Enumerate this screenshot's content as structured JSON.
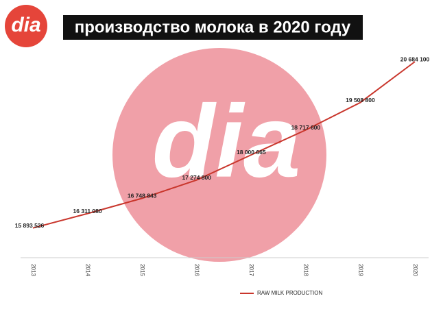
{
  "logo_text": "dia",
  "chart_data": {
    "type": "line",
    "title": "производство молока в 2020 году",
    "categories": [
      "2013",
      "2014",
      "2015",
      "2016",
      "2017",
      "2018",
      "2019",
      "2020"
    ],
    "series": [
      {
        "name": "RAW MILK PRODUCTION",
        "color": "#c9362c",
        "values": [
          15893526,
          16311080,
          16748843,
          17274800,
          18000665,
          18717600,
          19508800,
          20684100
        ],
        "value_labels": [
          "15 893 526",
          "16 311 080",
          "16 748 843",
          "17 274 800",
          "18 000 665",
          "18 717 600",
          "19 508 800",
          "20 684 100"
        ]
      }
    ],
    "ylim": [
      15000000,
      21000000
    ],
    "grid": false
  }
}
